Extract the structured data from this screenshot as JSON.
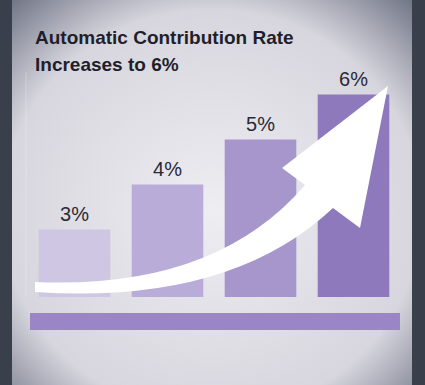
{
  "chart_data": {
    "type": "bar",
    "title": "Automatic Contribution Rate Increases to 6%",
    "categories": [
      null,
      null,
      null,
      null
    ],
    "values": [
      3,
      4,
      5,
      6
    ],
    "value_labels": [
      "3%",
      "4%",
      "5%",
      "6%"
    ],
    "colors": [
      "#cfc6e3",
      "#b9acd8",
      "#a796cc",
      "#8f79bd"
    ],
    "ylim": [
      1.5,
      6.5
    ],
    "data_labels": true,
    "tick_labels": false
  }
}
